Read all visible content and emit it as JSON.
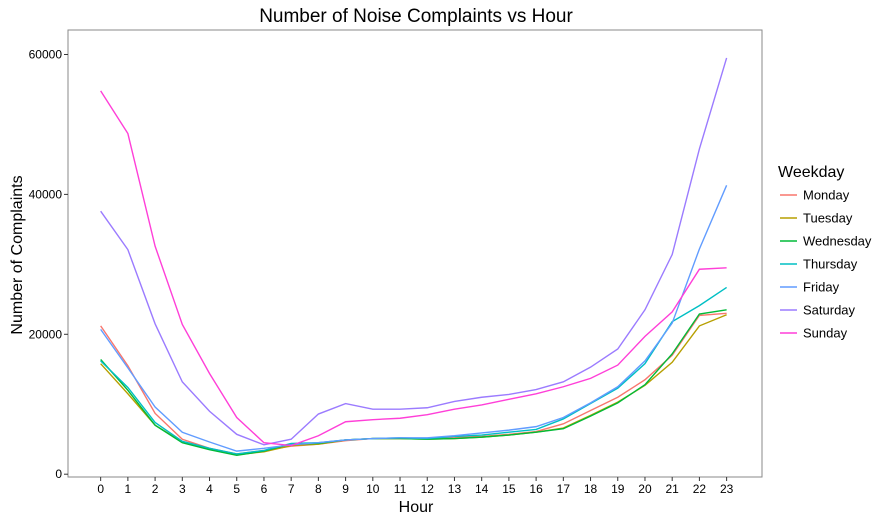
{
  "chart_data": {
    "type": "line",
    "title": "Number of Noise Complaints vs Hour",
    "xlabel": "Hour",
    "ylabel": "Number of Complaints",
    "x": [
      0,
      1,
      2,
      3,
      4,
      5,
      6,
      7,
      8,
      9,
      10,
      11,
      12,
      13,
      14,
      15,
      16,
      17,
      18,
      19,
      20,
      21,
      22,
      23
    ],
    "xlim": [
      -1.2,
      24.3
    ],
    "ylim": [
      -400,
      63500
    ],
    "yticks": [
      0,
      20000,
      40000,
      60000
    ],
    "grid": false,
    "legend_title": "Weekday",
    "legend_position": "right",
    "series": [
      {
        "name": "Monday",
        "color": "#F8766D",
        "values": [
          21200,
          15500,
          8700,
          5000,
          3700,
          2900,
          3400,
          4000,
          4300,
          4800,
          5100,
          5100,
          5100,
          5300,
          5400,
          5700,
          6100,
          7200,
          9100,
          11000,
          13500,
          17000,
          22700,
          23000
        ]
      },
      {
        "name": "Tuesday",
        "color": "#B79F00",
        "values": [
          15800,
          11500,
          7000,
          4600,
          3600,
          2800,
          3200,
          4100,
          4300,
          4900,
          5100,
          5100,
          5000,
          5100,
          5300,
          5600,
          6000,
          6600,
          8400,
          10300,
          12700,
          16000,
          21200,
          22800
        ]
      },
      {
        "name": "Wednesday",
        "color": "#00BA38",
        "values": [
          16400,
          12000,
          7000,
          4500,
          3500,
          2700,
          3300,
          4300,
          4400,
          4900,
          5100,
          5100,
          5000,
          5100,
          5300,
          5600,
          6000,
          6500,
          8300,
          10200,
          12800,
          17200,
          22900,
          23500
        ]
      },
      {
        "name": "Thursday",
        "color": "#00BFC4",
        "values": [
          16200,
          12400,
          7400,
          4700,
          3700,
          2900,
          3400,
          4400,
          4500,
          4900,
          5100,
          5200,
          5100,
          5400,
          5600,
          6000,
          6400,
          7900,
          10100,
          12300,
          15800,
          21800,
          24100,
          26700
        ]
      },
      {
        "name": "Friday",
        "color": "#619CFF",
        "values": [
          20700,
          15200,
          9600,
          6000,
          4600,
          3300,
          3700,
          4200,
          4500,
          4900,
          5100,
          5200,
          5200,
          5500,
          5900,
          6300,
          6800,
          8100,
          10200,
          12500,
          16200,
          21600,
          32200,
          41300
        ]
      },
      {
        "name": "Saturday",
        "color": "#9B7BFF",
        "values": [
          37600,
          32100,
          21500,
          13200,
          9000,
          5700,
          4200,
          5000,
          8600,
          10100,
          9300,
          9300,
          9500,
          10400,
          11000,
          11400,
          12100,
          13200,
          15300,
          17900,
          23500,
          31400,
          46500,
          59500
        ]
      },
      {
        "name": "Sunday",
        "color": "#FF3FD8",
        "values": [
          54800,
          48700,
          32600,
          21400,
          14400,
          8100,
          4500,
          4100,
          5500,
          7500,
          7800,
          8000,
          8500,
          9300,
          9900,
          10700,
          11500,
          12500,
          13700,
          15600,
          19700,
          23200,
          29300,
          29500
        ]
      }
    ]
  }
}
